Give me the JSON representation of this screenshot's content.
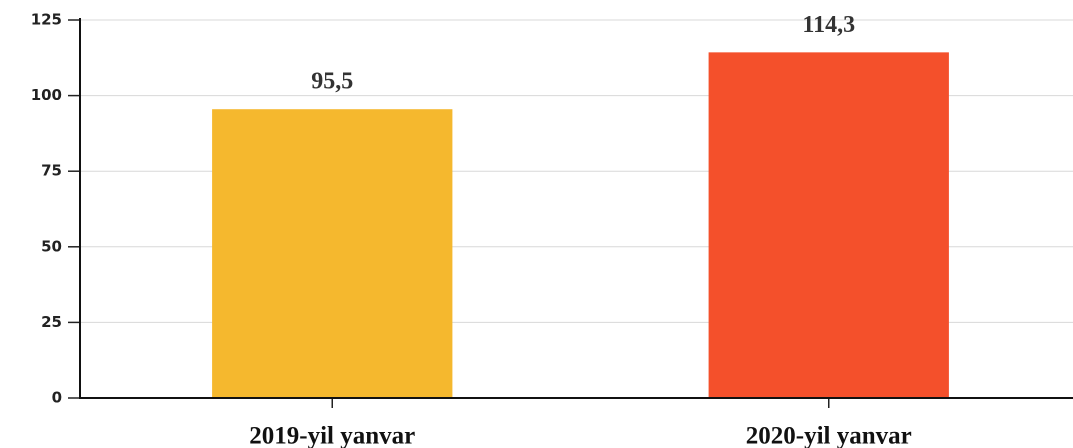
{
  "chart_data": {
    "type": "bar",
    "categories": [
      "2019-yil yanvar",
      "2020-yil yanvar"
    ],
    "values": [
      95.5,
      114.3
    ],
    "value_labels": [
      "95,5",
      "114,3"
    ],
    "colors": [
      "#f5b82e",
      "#f4502b"
    ],
    "ylim": [
      0,
      125
    ],
    "yticks": [
      0,
      25,
      50,
      75,
      100,
      125
    ],
    "grid": true
  }
}
